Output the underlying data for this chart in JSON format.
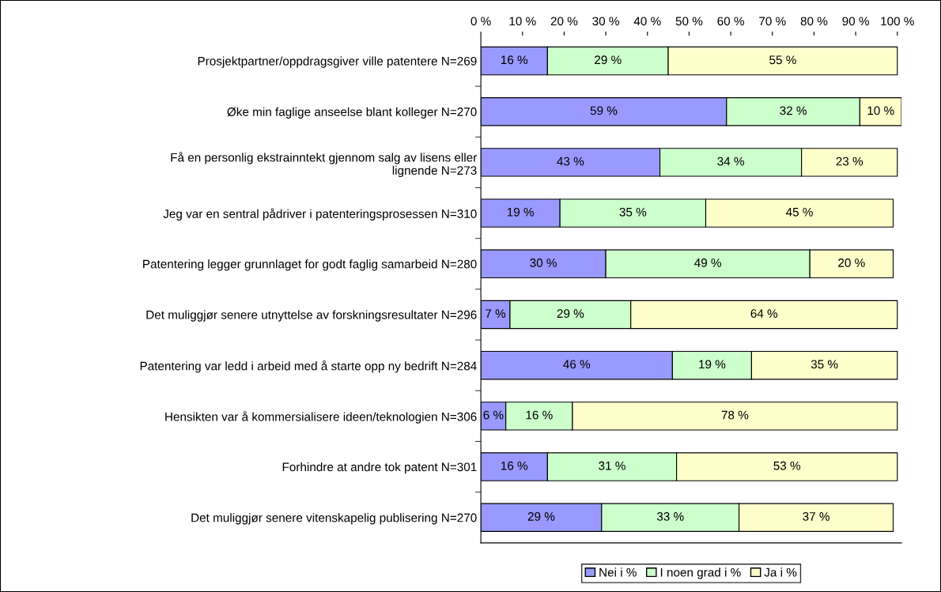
{
  "chart_data": {
    "type": "bar",
    "orientation": "horizontal",
    "stacked": true,
    "categories": [
      "Prosjektpartner/oppdragsgiver ville patentere N=269",
      "Øke min faglige anseelse blant kolleger N=270",
      "Få en personlig ekstrainntekt gjennom salg av lisens eller\nlignende N=273",
      "Jeg var en sentral pådriver i patenteringsprosessen N=310",
      "Patentering legger grunnlaget for godt faglig samarbeid N=280",
      "Det muliggjør senere utnyttelse av forskningsresultater N=296",
      "Patentering var ledd i arbeid med å starte opp ny bedrift N=284",
      "Hensikten var å kommersialisere ideen/teknologien N=306",
      "Forhindre at andre tok patent N=301",
      "Det muliggjør senere vitenskapelig publisering N=270"
    ],
    "series": [
      {
        "name": "Nei i %",
        "color": "#9999ff",
        "values": [
          16,
          59,
          43,
          19,
          30,
          7,
          46,
          6,
          16,
          29
        ],
        "value_labels": [
          "16 %",
          "59 %",
          "43 %",
          "19 %",
          "30 %",
          "7 %",
          "46 %",
          "6 %",
          "16 %",
          "29 %"
        ]
      },
      {
        "name": "I noen grad i %",
        "color": "#ccffcc",
        "values": [
          29,
          32,
          34,
          35,
          49,
          29,
          19,
          16,
          31,
          33
        ],
        "value_labels": [
          "29 %",
          "32 %",
          "34 %",
          "35 %",
          "49 %",
          "29 %",
          "19 %",
          "16 %",
          "31 %",
          "33 %"
        ]
      },
      {
        "name": "Ja i %",
        "color": "#ffffcc",
        "values": [
          55,
          10,
          23,
          45,
          20,
          64,
          35,
          78,
          53,
          37
        ],
        "value_labels": [
          "55 %",
          "10 %",
          "23 %",
          "45 %",
          "20 %",
          "64 %",
          "35 %",
          "78 %",
          "53 %",
          "37 %"
        ]
      }
    ],
    "xlim": [
      0,
      101
    ],
    "xticks": [
      {
        "value": 0,
        "label": "0 %"
      },
      {
        "value": 10,
        "label": "10 %"
      },
      {
        "value": 20,
        "label": "20 %"
      },
      {
        "value": 30,
        "label": "30 %"
      },
      {
        "value": 40,
        "label": "40 %"
      },
      {
        "value": 50,
        "label": "50 %"
      },
      {
        "value": 60,
        "label": "60 %"
      },
      {
        "value": 70,
        "label": "70 %"
      },
      {
        "value": 80,
        "label": "80 %"
      },
      {
        "value": 90,
        "label": "90 %"
      },
      {
        "value": 100,
        "label": "100 %"
      }
    ],
    "grid": false,
    "legend": "bottom"
  }
}
